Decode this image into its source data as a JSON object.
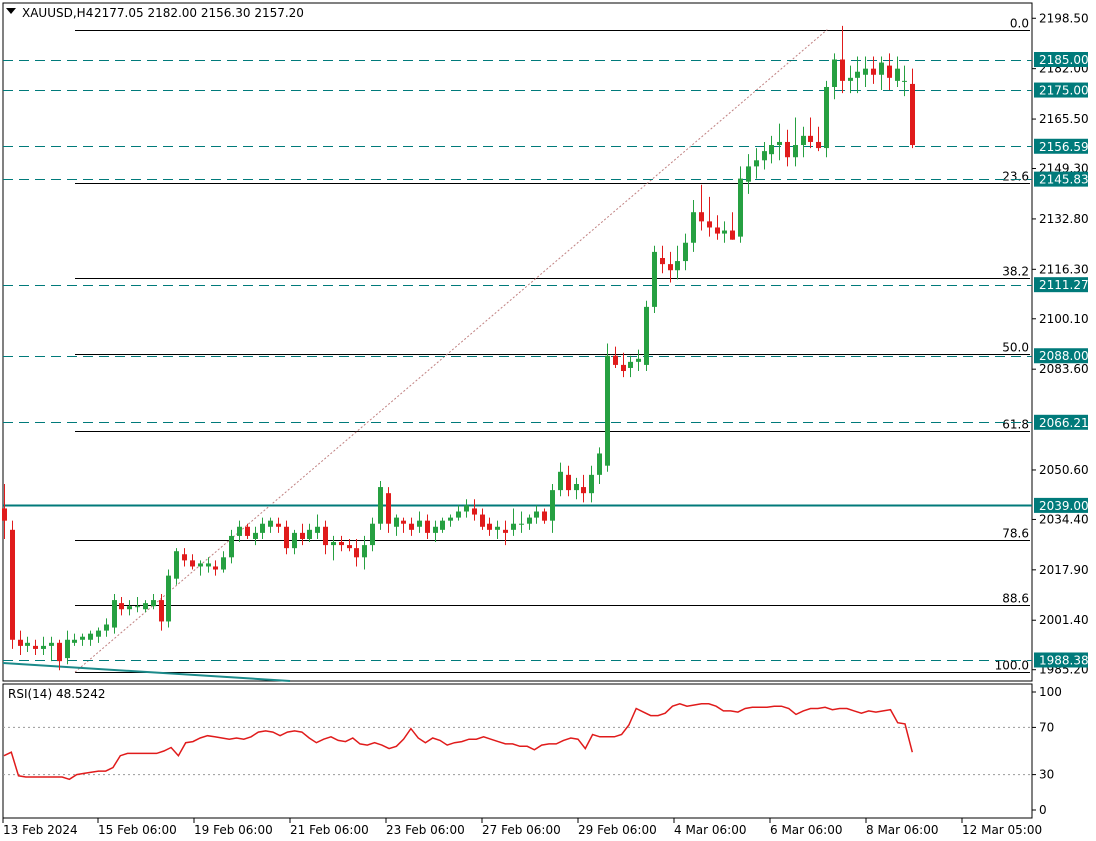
{
  "header": {
    "symbol": "XAUUSD,H4",
    "ohlc": "2177.05 2182.00 2156.30 2157.20"
  },
  "colors": {
    "bull": "#26a041",
    "bear": "#e01b1b",
    "level": "#007a7a",
    "fib": "#000000",
    "rsi": "#e01b1b",
    "trend": "#1b8a8a"
  },
  "chart_data": [
    {
      "type": "candlestick",
      "title": "XAUUSD,H4",
      "ylim": [
        1981.5,
        2203.5
      ],
      "y_ticks": [
        "2198.50",
        "2182.00",
        "2165.50",
        "2149.30",
        "2132.80",
        "2116.30",
        "2100.10",
        "2083.60",
        "2050.60",
        "2034.40",
        "2017.90",
        "2001.40",
        "1985.20"
      ],
      "x_labels": [
        "13 Feb 2024",
        "15 Feb 06:00",
        "19 Feb 06:00",
        "21 Feb 06:00",
        "23 Feb 06:00",
        "27 Feb 06:00",
        "29 Feb 06:00",
        "4 Mar 06:00",
        "6 Mar 06:00",
        "8 Mar 06:00",
        "12 Mar 05:00"
      ],
      "price_levels": [
        {
          "label": "2185.00",
          "value": 2185.0
        },
        {
          "label": "2175.00",
          "value": 2175.0
        },
        {
          "label": "2156.59",
          "value": 2156.59
        },
        {
          "label": "2145.83",
          "value": 2145.83
        },
        {
          "label": "2111.27",
          "value": 2111.27
        },
        {
          "label": "2088.00",
          "value": 2088.0
        },
        {
          "label": "2066.21",
          "value": 2066.21
        },
        {
          "label": "1988.38",
          "value": 1988.38
        }
      ],
      "support_line": {
        "label": "2039.00",
        "value": 2039.0
      },
      "fibonacci": [
        {
          "label": "0.0",
          "value": 2194.8
        },
        {
          "label": "23.6",
          "value": 2144.6
        },
        {
          "label": "38.2",
          "value": 2113.6
        },
        {
          "label": "50.0",
          "value": 2088.5
        },
        {
          "label": "61.8",
          "value": 2063.4
        },
        {
          "label": "78.6",
          "value": 2027.7
        },
        {
          "label": "88.6",
          "value": 2006.4
        },
        {
          "label": "100.0",
          "value": 1984.4
        }
      ],
      "candles": [
        [
          2038,
          2046,
          2028,
          2034
        ],
        [
          2031,
          2034,
          1992,
          1995
        ],
        [
          1995,
          1998,
          1990,
          1993
        ],
        [
          1993,
          1996,
          1991,
          1994
        ],
        [
          1993,
          1995,
          1990,
          1992
        ],
        [
          1992,
          1996,
          1990,
          1993
        ],
        [
          1993,
          1996,
          1988,
          1994
        ],
        [
          1994,
          1995,
          1985,
          1988
        ],
        [
          1989,
          1998,
          1987,
          1995
        ],
        [
          1994,
          1997,
          1993,
          1995
        ],
        [
          1995,
          1997,
          1993,
          1996
        ],
        [
          1995,
          1998,
          1993,
          1997
        ],
        [
          1996,
          1999,
          1994,
          1998
        ],
        [
          1998,
          2002,
          1996,
          2000
        ],
        [
          1999,
          2010,
          1997,
          2008
        ],
        [
          2007,
          2009,
          2003,
          2005
        ],
        [
          2005,
          2008,
          2003,
          2006
        ],
        [
          2006,
          2009,
          2004,
          2006
        ],
        [
          2005,
          2008,
          2004,
          2007
        ],
        [
          2006,
          2010,
          2005,
          2008
        ],
        [
          2008,
          2010,
          1998,
          2001
        ],
        [
          2001,
          2018,
          1999,
          2016
        ],
        [
          2015,
          2025,
          2013,
          2024
        ],
        [
          2023,
          2025,
          2019,
          2021
        ],
        [
          2021,
          2023,
          2018,
          2019
        ],
        [
          2019,
          2021,
          2016,
          2020
        ],
        [
          2019,
          2022,
          2017,
          2020
        ],
        [
          2019,
          2021,
          2016,
          2018
        ],
        [
          2018,
          2024,
          2017,
          2022
        ],
        [
          2022,
          2031,
          2020,
          2029
        ],
        [
          2029,
          2034,
          2027,
          2032
        ],
        [
          2032,
          2033,
          2028,
          2029
        ],
        [
          2028,
          2032,
          2026,
          2030
        ],
        [
          2030,
          2035,
          2028,
          2033
        ],
        [
          2032,
          2035,
          2030,
          2034
        ],
        [
          2033,
          2035,
          2030,
          2032
        ],
        [
          2032,
          2034,
          2023,
          2025
        ],
        [
          2025,
          2031,
          2023,
          2030
        ],
        [
          2030,
          2033,
          2026,
          2028
        ],
        [
          2028,
          2033,
          2027,
          2031
        ],
        [
          2030,
          2036,
          2028,
          2032
        ],
        [
          2032,
          2034,
          2023,
          2026
        ],
        [
          2026,
          2029,
          2021,
          2027
        ],
        [
          2027,
          2029,
          2024,
          2026
        ],
        [
          2026,
          2028,
          2024,
          2025
        ],
        [
          2025,
          2028,
          2019,
          2022
        ],
        [
          2022,
          2029,
          2018,
          2026
        ],
        [
          2026,
          2035,
          2024,
          2033
        ],
        [
          2033,
          2047,
          2031,
          2045
        ],
        [
          2043,
          2045,
          2030,
          2033
        ],
        [
          2032,
          2036,
          2029,
          2035
        ],
        [
          2034,
          2035,
          2030,
          2033
        ],
        [
          2033,
          2035,
          2029,
          2031
        ],
        [
          2032,
          2037,
          2030,
          2034
        ],
        [
          2034,
          2036,
          2028,
          2030
        ],
        [
          2030,
          2034,
          2027,
          2032
        ],
        [
          2031,
          2035,
          2030,
          2034
        ],
        [
          2034,
          2036,
          2032,
          2035
        ],
        [
          2035,
          2039,
          2034,
          2037
        ],
        [
          2037,
          2041,
          2035,
          2039
        ],
        [
          2038,
          2041,
          2034,
          2036
        ],
        [
          2036,
          2038,
          2031,
          2032
        ],
        [
          2033,
          2035,
          2029,
          2031
        ],
        [
          2031,
          2034,
          2028,
          2032
        ],
        [
          2031,
          2034,
          2026,
          2030
        ],
        [
          2031,
          2038,
          2029,
          2033
        ],
        [
          2033,
          2037,
          2030,
          2033
        ],
        [
          2033,
          2036,
          2031,
          2035
        ],
        [
          2035,
          2039,
          2033,
          2037
        ],
        [
          2037,
          2038,
          2033,
          2034
        ],
        [
          2034,
          2046,
          2030,
          2044
        ],
        [
          2044,
          2053,
          2042,
          2050
        ],
        [
          2049,
          2052,
          2042,
          2044
        ],
        [
          2044,
          2048,
          2041,
          2046
        ],
        [
          2045,
          2049,
          2040,
          2043
        ],
        [
          2043,
          2052,
          2040,
          2049
        ],
        [
          2049,
          2058,
          2046,
          2056
        ],
        [
          2052,
          2092,
          2050,
          2088
        ],
        [
          2088,
          2091,
          2084,
          2085
        ],
        [
          2085,
          2089,
          2081,
          2083
        ],
        [
          2084,
          2088,
          2081,
          2086
        ],
        [
          2086,
          2090,
          2083,
          2087
        ],
        [
          2085,
          2106,
          2083,
          2104
        ],
        [
          2104,
          2124,
          2102,
          2122
        ],
        [
          2120,
          2124,
          2115,
          2118
        ],
        [
          2118,
          2122,
          2112,
          2116
        ],
        [
          2116,
          2124,
          2113,
          2119
        ],
        [
          2119,
          2128,
          2116,
          2125
        ],
        [
          2125,
          2139,
          2122,
          2135
        ],
        [
          2135,
          2144,
          2129,
          2132
        ],
        [
          2132,
          2140,
          2127,
          2130
        ],
        [
          2130,
          2134,
          2126,
          2128
        ],
        [
          2128,
          2132,
          2125,
          2129
        ],
        [
          2129,
          2135,
          2126,
          2126
        ],
        [
          2127,
          2150,
          2125,
          2146
        ],
        [
          2145,
          2154,
          2141,
          2150
        ],
        [
          2150,
          2156,
          2146,
          2152
        ],
        [
          2152,
          2158,
          2149,
          2155
        ],
        [
          2154,
          2160,
          2151,
          2157
        ],
        [
          2157,
          2164,
          2152,
          2158
        ],
        [
          2158,
          2162,
          2150,
          2153
        ],
        [
          2153,
          2166,
          2150,
          2157
        ],
        [
          2157,
          2163,
          2153,
          2160
        ],
        [
          2160,
          2166,
          2156,
          2158
        ],
        [
          2158,
          2163,
          2155,
          2156
        ],
        [
          2156,
          2178,
          2153,
          2176
        ],
        [
          2176,
          2187,
          2172,
          2185
        ],
        [
          2185,
          2196,
          2174,
          2178
        ],
        [
          2178,
          2183,
          2174,
          2179
        ],
        [
          2179,
          2186,
          2174,
          2181
        ],
        [
          2180,
          2186,
          2176,
          2182
        ],
        [
          2182,
          2186,
          2177,
          2180
        ],
        [
          2180,
          2186,
          2175,
          2184
        ],
        [
          2183,
          2187,
          2175,
          2179
        ],
        [
          2178,
          2186,
          2176,
          2182
        ],
        [
          2178,
          2183,
          2173,
          2178
        ],
        [
          2177,
          2182,
          2156,
          2157
        ]
      ]
    },
    {
      "type": "line",
      "title": "RSI(14) 48.5242",
      "ylim": [
        0,
        100
      ],
      "y_ticks": [
        "100",
        "70",
        "30",
        "0"
      ],
      "levels": [
        70,
        30
      ],
      "values": [
        46,
        49,
        29,
        28,
        28,
        28,
        28,
        28,
        28,
        26,
        30,
        31,
        32,
        33,
        33,
        36,
        46,
        48,
        48,
        48,
        48,
        48,
        50,
        53,
        46,
        57,
        58,
        61,
        63,
        62,
        61,
        60,
        61,
        60,
        62,
        66,
        67,
        66,
        63,
        66,
        67,
        66,
        61,
        57,
        60,
        62,
        59,
        58,
        61,
        56,
        55,
        57,
        55,
        52,
        54,
        60,
        69,
        61,
        57,
        61,
        59,
        55,
        57,
        58,
        60,
        60,
        62,
        60,
        58,
        56,
        56,
        54,
        54,
        51,
        55,
        56,
        56,
        59,
        61,
        60,
        52,
        64,
        62,
        62,
        62,
        64,
        72,
        86,
        83,
        80,
        80,
        82,
        88,
        90,
        88,
        89,
        90,
        90,
        88,
        84,
        84,
        83,
        86,
        87,
        87,
        87,
        88,
        88,
        86,
        81,
        84,
        86,
        86,
        87,
        85,
        86,
        86,
        84,
        82,
        84,
        83,
        84,
        85,
        74,
        73,
        49
      ]
    }
  ]
}
